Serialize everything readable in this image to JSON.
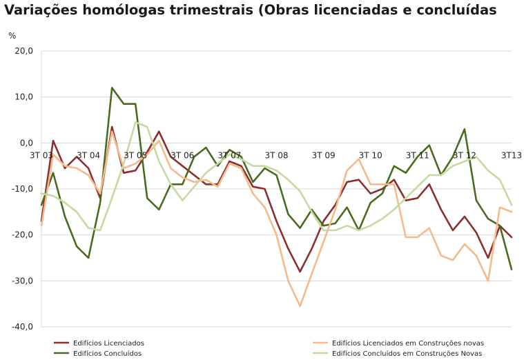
{
  "chart_data": {
    "type": "line",
    "title": "Variações homólogas trimestrais (Obras licenciadas e concluídas",
    "ylabel": "%",
    "xlabel": "",
    "ylim": [
      -40,
      20
    ],
    "yticks": [
      20,
      10,
      0,
      -10,
      -20,
      -30,
      -40
    ],
    "ytick_labels": [
      "20,0",
      "10,0",
      "0,0",
      "-10,0",
      "-20,0",
      "-30,0",
      "-40,0"
    ],
    "x_tick_labels": [
      {
        "label": "3T 03",
        "index": 0
      },
      {
        "label": "3T 04",
        "index": 4
      },
      {
        "label": "3T 05",
        "index": 8
      },
      {
        "label": "3T 06",
        "index": 12
      },
      {
        "label": "3T 07",
        "index": 16
      },
      {
        "label": "3T 08",
        "index": 20
      },
      {
        "label": "3T 09",
        "index": 24
      },
      {
        "label": "3T 10",
        "index": 28
      },
      {
        "label": "3T 11",
        "index": 32
      },
      {
        "label": "3T 12",
        "index": 36
      },
      {
        "label": "3T13",
        "index": 40
      }
    ],
    "n_points": 41,
    "grid": true,
    "legend_position": "bottom",
    "series": [
      {
        "name": "Edifícios Licenciados",
        "color": "#8b2e2e",
        "values": [
          -17,
          0.5,
          -5.5,
          -3,
          -5.5,
          -12,
          3.5,
          -6.5,
          -6,
          -2,
          2.5,
          -3,
          -5,
          -7,
          -9,
          -9,
          -4,
          -5,
          -9.5,
          -10,
          -17,
          -23,
          -28,
          -23,
          -17,
          -13.5,
          -8.5,
          -8,
          -11,
          -10,
          -8,
          -12.5,
          -12,
          -9,
          -14.5,
          -19,
          -16,
          -19.5,
          -25,
          -18,
          -20.5
        ]
      },
      {
        "name": "Edifícios Concluídos",
        "color": "#4a6a1e",
        "values": [
          -13.5,
          -6.5,
          -16,
          -22.5,
          -25,
          -13,
          12,
          8.5,
          8.5,
          -12,
          -14.5,
          -9,
          -9,
          -3,
          -1,
          -5,
          -1.5,
          -3,
          -8.5,
          -5.5,
          -7,
          -15.5,
          -18.5,
          -14.5,
          -18,
          -17.5,
          -14,
          -19,
          -13,
          -11,
          -5,
          -6.5,
          -3,
          -0.5,
          -7,
          -3,
          3,
          -12.5,
          -16.5,
          -18,
          -27.5
        ]
      },
      {
        "name": "Edifícios Licenciados em Construções novas",
        "color": "#f5b98a",
        "values": [
          -18,
          -2.5,
          -5,
          -5.5,
          -7,
          -11,
          2.5,
          -5.5,
          -4.5,
          -2.5,
          0.5,
          -5.5,
          -7.5,
          -8.5,
          -8,
          -9.5,
          -4.5,
          -5.5,
          -11,
          -14,
          -20,
          -30,
          -35.5,
          -28.5,
          -21.5,
          -14.5,
          -6,
          -3.5,
          -9,
          -9,
          -9,
          -20.5,
          -20.5,
          -18.5,
          -24.5,
          -25.5,
          -22,
          -24.5,
          -30,
          -14,
          -15
        ]
      },
      {
        "name": "Edifícios Concluídos em Construções Novas",
        "color": "#c5d9a0",
        "values": [
          -11,
          -11.5,
          -13,
          -15,
          -18.5,
          -19,
          -12,
          -4.5,
          4.5,
          3.5,
          -4,
          -9,
          -12.5,
          -9.5,
          -6.5,
          -4.5,
          -2.5,
          -3.5,
          -5,
          -5,
          -6,
          -8,
          -10.5,
          -15,
          -19,
          -19,
          -18,
          -19,
          -18,
          -16.5,
          -14.5,
          -12,
          -9.5,
          -7,
          -7,
          -5,
          -4,
          -3,
          -6,
          -8,
          -13.5
        ]
      }
    ]
  }
}
